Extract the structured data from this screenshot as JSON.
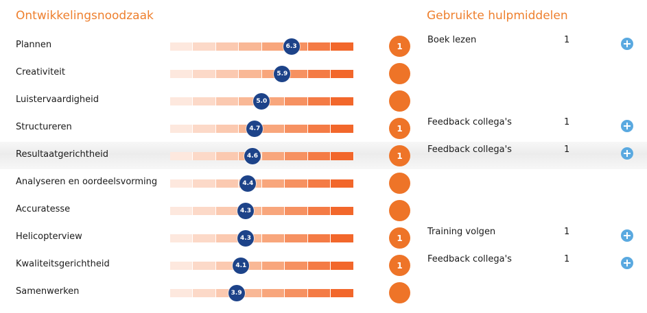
{
  "header": {
    "left_title": "Ontwikkelingsnoodzaak",
    "right_title": "Gebruikte hulpmiddelen"
  },
  "scale": {
    "min": 1,
    "max": 10
  },
  "rows": [
    {
      "label": "Plannen",
      "score": "6.3",
      "count": "1",
      "aid": "Boek lezen",
      "aid_count": "1",
      "highlight": false
    },
    {
      "label": "Creativiteit",
      "score": "5.9",
      "count": "",
      "aid": "",
      "aid_count": "",
      "highlight": false
    },
    {
      "label": "Luistervaardigheid",
      "score": "5.0",
      "count": "",
      "aid": "",
      "aid_count": "",
      "highlight": false
    },
    {
      "label": "Structureren",
      "score": "4.7",
      "count": "1",
      "aid": "Feedback collega's",
      "aid_count": "1",
      "highlight": false
    },
    {
      "label": "Resultaatgerichtheid",
      "score": "4.6",
      "count": "1",
      "aid": "Feedback collega's",
      "aid_count": "1",
      "highlight": true
    },
    {
      "label": "Analyseren en oordeelsvorming",
      "score": "4.4",
      "count": "",
      "aid": "",
      "aid_count": "",
      "highlight": false
    },
    {
      "label": "Accuratesse",
      "score": "4.3",
      "count": "",
      "aid": "",
      "aid_count": "",
      "highlight": false
    },
    {
      "label": "Helicopterview",
      "score": "4.3",
      "count": "1",
      "aid": "Training volgen",
      "aid_count": "1",
      "highlight": false
    },
    {
      "label": "Kwaliteitsgerichtheid",
      "score": "4.1",
      "count": "1",
      "aid": "Feedback collega's",
      "aid_count": "1",
      "highlight": false
    },
    {
      "label": "Samenwerken",
      "score": "3.9",
      "count": "",
      "aid": "",
      "aid_count": "",
      "highlight": false
    }
  ],
  "colors": {
    "accent": "#ee7f2d",
    "score_marker": "#1d4389",
    "plus_icon": "#5aa9e0"
  },
  "icons": {
    "add": "plus-circle-icon"
  }
}
